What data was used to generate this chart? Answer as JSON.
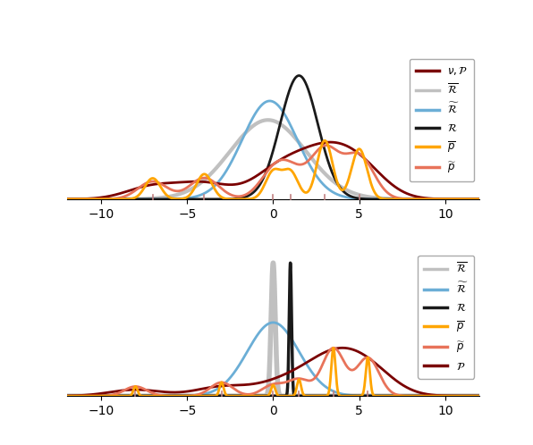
{
  "xlim": [
    -12,
    12
  ],
  "xticks": [
    -10,
    -5,
    0,
    5,
    10
  ],
  "colors": {
    "nu_P": "#7a0000",
    "R_bar": "#C0C0C0",
    "R_tilde": "#6BAED6",
    "R": "#1a1a1a",
    "P_bar": "#FFA500",
    "P_tilde": "#E8735A",
    "P2": "#7a0000"
  },
  "legend1": [
    {
      "label": "$\\nu, \\mathcal{P}$",
      "color": "#7a0000"
    },
    {
      "label": "$\\overline{\\mathcal{R}}$",
      "color": "#C0C0C0"
    },
    {
      "label": "$\\widetilde{\\mathcal{R}}$",
      "color": "#6BAED6"
    },
    {
      "label": "$\\mathcal{R}$",
      "color": "#1a1a1a"
    },
    {
      "label": "$\\overline{p}$",
      "color": "#FFA500"
    },
    {
      "label": "$\\widetilde{p}$",
      "color": "#E8735A"
    }
  ],
  "legend2": [
    {
      "label": "$\\overline{\\mathcal{R}}$",
      "color": "#C0C0C0"
    },
    {
      "label": "$\\widetilde{\\mathcal{R}}$",
      "color": "#6BAED6"
    },
    {
      "label": "$\\mathcal{R}$",
      "color": "#1a1a1a"
    },
    {
      "label": "$\\overline{p}$",
      "color": "#FFA500"
    },
    {
      "label": "$\\widetilde{p}$",
      "color": "#E8735A"
    },
    {
      "label": "$\\mathcal{P}$",
      "color": "#7a0000"
    }
  ],
  "tick_marks1": [
    -7.0,
    -4.0,
    0.0,
    1.0,
    3.0,
    5.0
  ],
  "tick_marks2": [
    -8.0,
    -3.0,
    0.0,
    1.5,
    3.5,
    5.5
  ]
}
